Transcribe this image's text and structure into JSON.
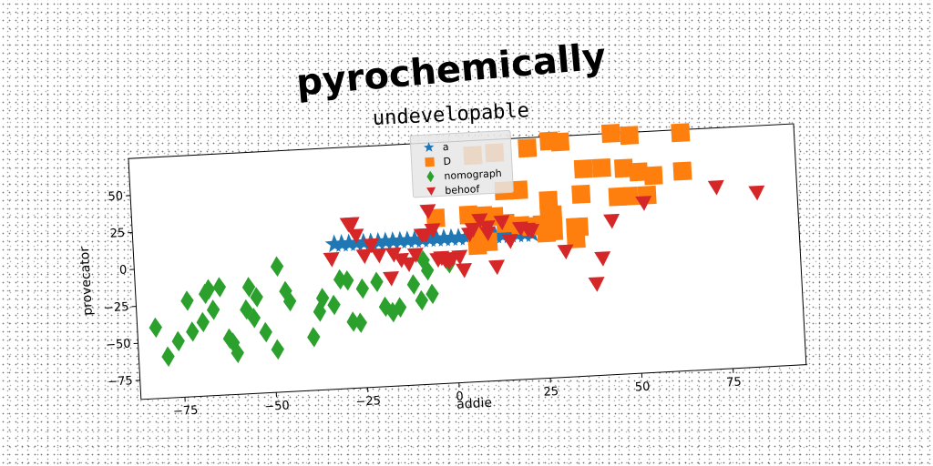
{
  "chart_data": {
    "type": "scatter",
    "suptitle": "pyrochemically",
    "title": "undevelopable",
    "xlabel": "addie",
    "ylabel": "provecator",
    "xlim": [
      -87,
      95
    ],
    "ylim": [
      -88,
      75
    ],
    "xticks": [
      -75,
      -50,
      -25,
      0,
      25,
      50,
      75
    ],
    "yticks": [
      -75,
      -50,
      -25,
      0,
      25,
      50
    ],
    "grid": false,
    "legend_position": "top-center",
    "series": [
      {
        "name": "a",
        "marker": "star",
        "color": "#1f77b4",
        "points": [
          [
            -32,
            10
          ],
          [
            -30,
            10
          ],
          [
            -28,
            10
          ],
          [
            -26,
            10
          ],
          [
            -24,
            10
          ],
          [
            -22,
            10
          ],
          [
            -20,
            10
          ],
          [
            -18,
            10
          ],
          [
            -16,
            10
          ],
          [
            -14,
            10
          ],
          [
            -12,
            10
          ],
          [
            -10,
            10
          ],
          [
            -8,
            10
          ],
          [
            -6,
            10
          ],
          [
            -4,
            10
          ],
          [
            -2,
            10
          ],
          [
            0,
            10
          ],
          [
            2,
            10
          ],
          [
            4,
            10
          ],
          [
            6,
            10
          ],
          [
            8,
            10
          ],
          [
            10,
            10
          ],
          [
            12,
            10
          ],
          [
            14,
            10
          ],
          [
            16,
            10
          ],
          [
            18,
            10
          ],
          [
            20,
            10
          ],
          [
            22,
            10
          ]
        ]
      },
      {
        "name": "D",
        "marker": "square",
        "color": "#ff7f0e",
        "points": [
          [
            7,
            65
          ],
          [
            13,
            66
          ],
          [
            22,
            68
          ],
          [
            28,
            72
          ],
          [
            31,
            71
          ],
          [
            45,
            75
          ],
          [
            50,
            73
          ],
          [
            64,
            73
          ],
          [
            37,
            52
          ],
          [
            42,
            52
          ],
          [
            48,
            51
          ],
          [
            52,
            48
          ],
          [
            56,
            45
          ],
          [
            64,
            47
          ],
          [
            15,
            40
          ],
          [
            19,
            40
          ],
          [
            27,
            32
          ],
          [
            36,
            35
          ],
          [
            46,
            32
          ],
          [
            49,
            32
          ],
          [
            54,
            32
          ],
          [
            5,
            25
          ],
          [
            9,
            24
          ],
          [
            12,
            23
          ],
          [
            27,
            23
          ],
          [
            28,
            22
          ],
          [
            15,
            18
          ],
          [
            19,
            16
          ],
          [
            22,
            15
          ],
          [
            25,
            16
          ],
          [
            7,
            15
          ],
          [
            8,
            13
          ],
          [
            34,
            13
          ],
          [
            35,
            13
          ],
          [
            26,
            10
          ],
          [
            28,
            11
          ],
          [
            34,
            5
          ],
          [
            7,
            4
          ],
          [
            10,
            6
          ],
          [
            -4,
            24
          ]
        ]
      },
      {
        "name": "nomograph",
        "marker": "diamond",
        "color": "#2ca02c",
        "points": [
          [
            -82,
            -40
          ],
          [
            -79,
            -60
          ],
          [
            -76,
            -50
          ],
          [
            -73,
            -23
          ],
          [
            -72,
            -44
          ],
          [
            -69,
            -38
          ],
          [
            -68,
            -19
          ],
          [
            -67,
            -16
          ],
          [
            -66,
            -30
          ],
          [
            -64,
            -15
          ],
          [
            -62,
            -50
          ],
          [
            -61,
            -53
          ],
          [
            -60,
            -60
          ],
          [
            -57,
            -31
          ],
          [
            -56,
            -16
          ],
          [
            -55,
            -37
          ],
          [
            -54,
            -23
          ],
          [
            -52,
            -47
          ],
          [
            -49,
            -59
          ],
          [
            -48,
            -3
          ],
          [
            -46,
            -20
          ],
          [
            -45,
            -27
          ],
          [
            -39,
            -52
          ],
          [
            -37,
            -35
          ],
          [
            -36,
            -26
          ],
          [
            -33,
            -31
          ],
          [
            -31,
            -14
          ],
          [
            -29,
            -15
          ],
          [
            -28,
            -43
          ],
          [
            -26,
            -44
          ],
          [
            -25,
            -21
          ],
          [
            -21,
            -17
          ],
          [
            -19,
            -34
          ],
          [
            -17,
            -38
          ],
          [
            -15,
            -35
          ],
          [
            -11,
            -20
          ],
          [
            -9,
            -31
          ],
          [
            -8,
            -4
          ],
          [
            -7,
            -11
          ],
          [
            -6,
            -27
          ],
          [
            -1,
            -6
          ],
          [
            -1,
            -7
          ]
        ]
      },
      {
        "name": "behoof",
        "marker": "triangle_down",
        "color": "#d62728",
        "points": [
          [
            -33,
            0
          ],
          [
            -28,
            23
          ],
          [
            -27,
            23
          ],
          [
            -26,
            15
          ],
          [
            -24,
            1
          ],
          [
            -22,
            8
          ],
          [
            -20,
            1
          ],
          [
            -17,
            -15
          ],
          [
            -16,
            1
          ],
          [
            -14,
            -3
          ],
          [
            -12,
            -6
          ],
          [
            -10,
            0
          ],
          [
            -8,
            13
          ],
          [
            -7,
            13
          ],
          [
            -6,
            29
          ],
          [
            -5,
            16
          ],
          [
            -4,
            -4
          ],
          [
            -3,
            -3
          ],
          [
            -2,
            -5
          ],
          [
            -1,
            -6
          ],
          [
            0,
            -4
          ],
          [
            2,
            -3
          ],
          [
            3,
            -12
          ],
          [
            5,
            12
          ],
          [
            6,
            15
          ],
          [
            8,
            21
          ],
          [
            10,
            16
          ],
          [
            10,
            12
          ],
          [
            12,
            -11
          ],
          [
            14,
            19
          ],
          [
            16,
            6
          ],
          [
            19,
            14
          ],
          [
            21,
            13
          ],
          [
            22,
            12
          ],
          [
            31,
            -3
          ],
          [
            39,
            -26
          ],
          [
            41,
            -9
          ],
          [
            44,
            16
          ],
          [
            53,
            27
          ],
          [
            73,
            35
          ],
          [
            84,
            30
          ]
        ]
      }
    ]
  }
}
